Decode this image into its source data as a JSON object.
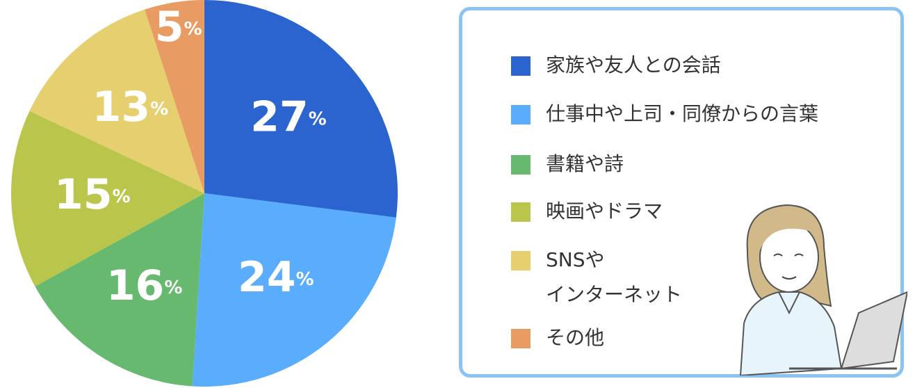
{
  "chart_data": {
    "type": "pie",
    "categories": [
      "家族や友人との会話",
      "仕事中や上司・同僚からの言葉",
      "書籍や詩",
      "映画やドラマ",
      "SNSや\nインターネット",
      "その他"
    ],
    "values": [
      27,
      24,
      16,
      15,
      13,
      5
    ],
    "value_labels": [
      "27%",
      "24%",
      "16%",
      "15%",
      "13%",
      "5%"
    ],
    "colors": [
      "#2b63cf",
      "#5aacfc",
      "#66b96f",
      "#b9c64b",
      "#e5cf6e",
      "#e89b63"
    ]
  }
}
